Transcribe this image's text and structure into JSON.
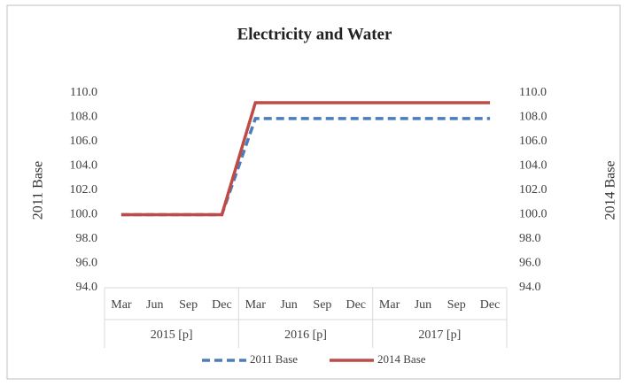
{
  "chart_data": {
    "type": "line",
    "title": "Electricity and Water",
    "ylabel": "2011 Base",
    "y2label": "2014 Base",
    "categories": [
      "Mar",
      "Jun",
      "Sep",
      "Dec",
      "Mar",
      "Jun",
      "Sep",
      "Dec",
      "Mar",
      "Jun",
      "Sep",
      "Dec"
    ],
    "groups": [
      "2015 [p]",
      "2016 [p]",
      "2017 [p]"
    ],
    "series": [
      {
        "name": "2011 Base",
        "color": "#4a7ebb",
        "dashed": true,
        "values": [
          100,
          100,
          100,
          100,
          107.9,
          107.9,
          107.9,
          107.9,
          107.9,
          107.9,
          107.9,
          107.9
        ]
      },
      {
        "name": "2014 Base",
        "color": "#be4b48",
        "axis": "y2",
        "values": [
          100,
          100,
          100,
          100,
          109.2,
          109.2,
          109.2,
          109.2,
          109.2,
          109.2,
          109.2,
          109.2
        ]
      }
    ],
    "ylim": [
      94,
      110
    ],
    "yticks": [
      {
        "value": 94,
        "label": "94.0"
      },
      {
        "value": 96,
        "label": "96.0"
      },
      {
        "value": 98,
        "label": "98.0"
      },
      {
        "value": 100,
        "label": "100.0"
      },
      {
        "value": 102,
        "label": "102.0"
      },
      {
        "value": 104,
        "label": "104.0"
      },
      {
        "value": 106,
        "label": "106.0"
      },
      {
        "value": 108,
        "label": "108.0"
      },
      {
        "value": 110,
        "label": "110.0"
      }
    ],
    "y2lim": [
      94,
      110
    ],
    "y2ticks": [
      {
        "value": 94,
        "label": "94.0"
      },
      {
        "value": 96,
        "label": "96.0"
      },
      {
        "value": 98,
        "label": "98.0"
      },
      {
        "value": 100,
        "label": "100.0"
      },
      {
        "value": 102,
        "label": "102.0"
      },
      {
        "value": 104,
        "label": "104.0"
      },
      {
        "value": 106,
        "label": "106.0"
      },
      {
        "value": 108,
        "label": "108.0"
      },
      {
        "value": 110,
        "label": "110.0"
      }
    ],
    "legend": "bottom"
  }
}
